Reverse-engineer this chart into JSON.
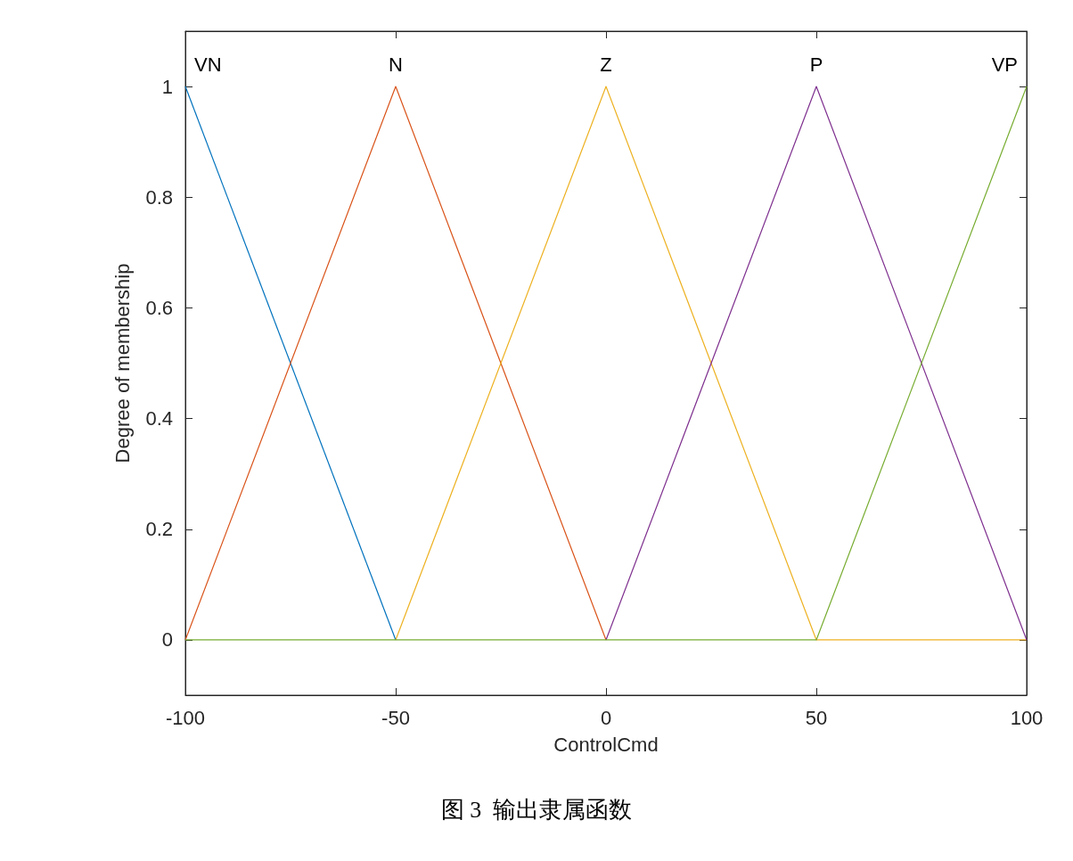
{
  "chart_data": {
    "type": "line",
    "xlabel": "ControlCmd",
    "ylabel": "Degree of membership",
    "annotations": [
      "图 3  输出隶属函数"
    ],
    "series": [
      {
        "name": "VN",
        "color": "#0072bd",
        "x": [
          -100,
          -50
        ],
        "values": [
          1,
          0
        ]
      },
      {
        "name": "N",
        "color": "#d95319",
        "x": [
          -100,
          -50,
          0
        ],
        "values": [
          0,
          1,
          0
        ]
      },
      {
        "name": "Z",
        "color": "#edb120",
        "x": [
          -50,
          0,
          50,
          100
        ],
        "values": [
          0,
          1,
          0,
          0
        ]
      },
      {
        "name": "P",
        "color": "#7e2f8e",
        "x": [
          0,
          50,
          100
        ],
        "values": [
          0,
          1,
          0
        ]
      },
      {
        "name": "VP",
        "color": "#77ac30",
        "x": [
          -100,
          -50,
          0,
          50,
          100
        ],
        "values": [
          0,
          0,
          0,
          0,
          1
        ]
      }
    ],
    "xlim": [
      -100,
      100
    ],
    "xticks": [
      -100,
      -50,
      0,
      50,
      100
    ],
    "ylim": [
      -0.1,
      1.1
    ],
    "yticks": [
      0,
      0.2,
      0.4,
      0.6,
      0.8,
      1
    ],
    "grid": false,
    "legend": false,
    "marker": "none",
    "line_style": "solid"
  }
}
